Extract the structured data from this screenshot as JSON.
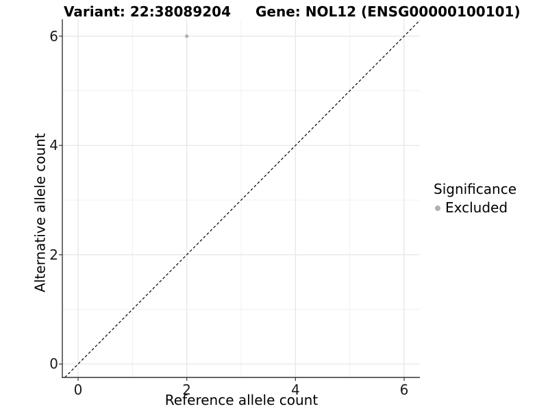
{
  "chart_data": {
    "type": "scatter",
    "title_left": "Variant: 22:38089204",
    "title_right": "Gene: NOL12 (ENSG00000100101)",
    "xlabel": "Reference allele count",
    "ylabel": "Alternative allele count",
    "xlim": [
      -0.29,
      6.29
    ],
    "ylim": [
      -0.245,
      6.31
    ],
    "x_major_ticks": [
      0,
      2,
      4,
      6
    ],
    "x_tick_labels": [
      "0",
      "2",
      "4",
      "6"
    ],
    "y_major_ticks": [
      0,
      2,
      4,
      6
    ],
    "y_tick_labels": [
      "0",
      "2",
      "4",
      "6"
    ],
    "x_minor_gridlines": [
      1,
      3,
      5
    ],
    "y_minor_gridlines": [
      1,
      3,
      5
    ],
    "grid": true,
    "series": [
      {
        "name": "Excluded",
        "color": "#b0b0b0",
        "points": [
          {
            "x": 2,
            "y": 6
          }
        ]
      }
    ],
    "reference_line": {
      "kind": "y=x",
      "style": "dashed",
      "color": "#000000"
    },
    "legend": {
      "position": "right",
      "title": "Significance",
      "items": [
        {
          "label": "Excluded",
          "color": "#b0b0b0"
        }
      ]
    },
    "colors": {
      "major_grid": "#e4e4e4",
      "minor_grid": "#f0f0f0",
      "axis_line": "#333333",
      "tick_mark": "#333333",
      "tick_text": "#1a1a1a",
      "background": "#ffffff"
    }
  }
}
